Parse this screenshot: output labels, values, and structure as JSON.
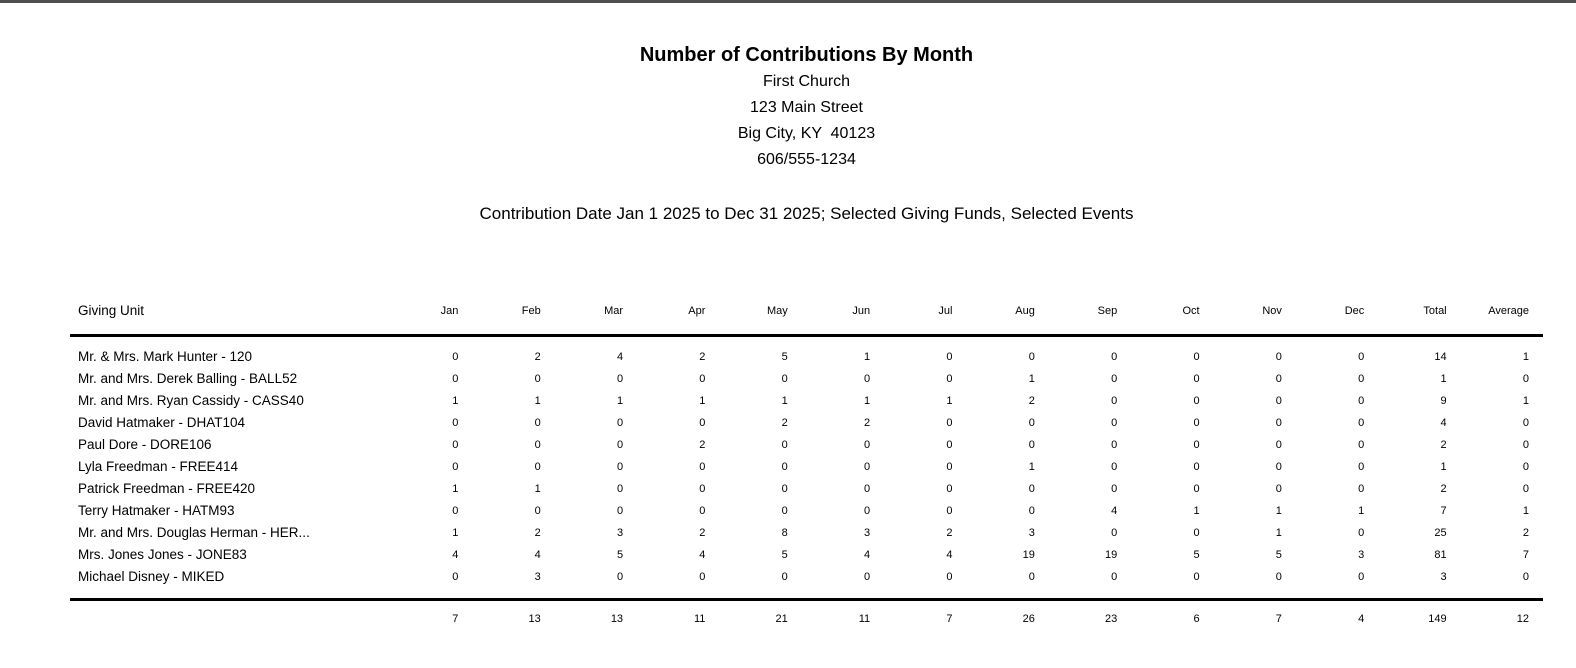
{
  "page": {
    "top_border_color": "#4d4f50"
  },
  "header": {
    "title": "Number of Contributions By Month",
    "org_name": "First Church",
    "address_line1": "123 Main Street",
    "address_line2": "Big City, KY  40123",
    "phone": "606/555-1234",
    "criteria": "Contribution Date Jan 1 2025 to Dec 31 2025; Selected Giving Funds, Selected Events"
  },
  "table": {
    "unit_header": "Giving Unit",
    "columns": [
      "Jan",
      "Feb",
      "Mar",
      "Apr",
      "May",
      "Jun",
      "Jul",
      "Aug",
      "Sep",
      "Oct",
      "Nov",
      "Dec",
      "Total",
      "Average"
    ],
    "rows": [
      {
        "name": "Mr. & Mrs. Mark Hunter - 120",
        "values": [
          0,
          2,
          4,
          2,
          5,
          1,
          0,
          0,
          0,
          0,
          0,
          0,
          14,
          1
        ]
      },
      {
        "name": "Mr. and Mrs. Derek Balling - BALL52",
        "values": [
          0,
          0,
          0,
          0,
          0,
          0,
          0,
          1,
          0,
          0,
          0,
          0,
          1,
          0
        ]
      },
      {
        "name": "Mr. and Mrs. Ryan Cassidy - CASS40",
        "values": [
          1,
          1,
          1,
          1,
          1,
          1,
          1,
          2,
          0,
          0,
          0,
          0,
          9,
          1
        ]
      },
      {
        "name": "David Hatmaker - DHAT104",
        "values": [
          0,
          0,
          0,
          0,
          2,
          2,
          0,
          0,
          0,
          0,
          0,
          0,
          4,
          0
        ]
      },
      {
        "name": "Paul Dore - DORE106",
        "values": [
          0,
          0,
          0,
          2,
          0,
          0,
          0,
          0,
          0,
          0,
          0,
          0,
          2,
          0
        ]
      },
      {
        "name": "Lyla Freedman - FREE414",
        "values": [
          0,
          0,
          0,
          0,
          0,
          0,
          0,
          1,
          0,
          0,
          0,
          0,
          1,
          0
        ]
      },
      {
        "name": "Patrick Freedman - FREE420",
        "values": [
          1,
          1,
          0,
          0,
          0,
          0,
          0,
          0,
          0,
          0,
          0,
          0,
          2,
          0
        ]
      },
      {
        "name": "Terry Hatmaker - HATM93",
        "values": [
          0,
          0,
          0,
          0,
          0,
          0,
          0,
          0,
          4,
          1,
          1,
          1,
          7,
          1
        ]
      },
      {
        "name": "Mr. and Mrs. Douglas Herman - HER...",
        "values": [
          1,
          2,
          3,
          2,
          8,
          3,
          2,
          3,
          0,
          0,
          1,
          0,
          25,
          2
        ]
      },
      {
        "name": "Mrs. Jones Jones - JONE83",
        "values": [
          4,
          4,
          5,
          4,
          5,
          4,
          4,
          19,
          19,
          5,
          5,
          3,
          81,
          7
        ]
      },
      {
        "name": "Michael Disney - MIKED",
        "values": [
          0,
          3,
          0,
          0,
          0,
          0,
          0,
          0,
          0,
          0,
          0,
          0,
          3,
          0
        ]
      }
    ],
    "totals": [
      7,
      13,
      13,
      11,
      21,
      11,
      7,
      26,
      23,
      6,
      7,
      4,
      149,
      12
    ]
  }
}
